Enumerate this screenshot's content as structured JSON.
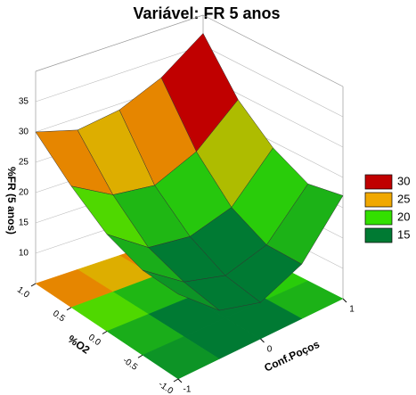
{
  "chart_data": {
    "type": "surface3d",
    "title": "Variável: FR 5 anos",
    "xlabel": "%O2",
    "ylabel": "Conf.Poços",
    "zlabel": "%FR (5 anos)",
    "x": [
      -1,
      -0.5,
      0,
      0.5,
      1
    ],
    "y": [
      -1,
      -0.5,
      0,
      0.5,
      1
    ],
    "z": [
      [
        19,
        13,
        11,
        14,
        22
      ],
      [
        19,
        14,
        12,
        14,
        21
      ],
      [
        21,
        16,
        15,
        17,
        24
      ],
      [
        25,
        21,
        20,
        23,
        29
      ],
      [
        30,
        28,
        29,
        32,
        37
      ]
    ],
    "xlim": [
      -1,
      1
    ],
    "ylim": [
      -1,
      1
    ],
    "zlim": [
      5,
      40
    ],
    "xticks": [
      {
        "value": 1,
        "label": "1.0"
      },
      {
        "value": 0.5,
        "label": "0.5"
      },
      {
        "value": 0,
        "label": "0.0"
      },
      {
        "value": -0.5,
        "label": "-0.5"
      },
      {
        "value": -1,
        "label": "-1.0"
      }
    ],
    "yticks": [
      -1,
      0,
      1
    ],
    "zticks": [
      10,
      15,
      20,
      25,
      30,
      35
    ],
    "legend": [
      {
        "value": 30,
        "color": "#c00000"
      },
      {
        "value": 25,
        "color": "#f0a800"
      },
      {
        "value": 20,
        "color": "#33e000"
      },
      {
        "value": 15,
        "color": "#007a33"
      }
    ]
  }
}
